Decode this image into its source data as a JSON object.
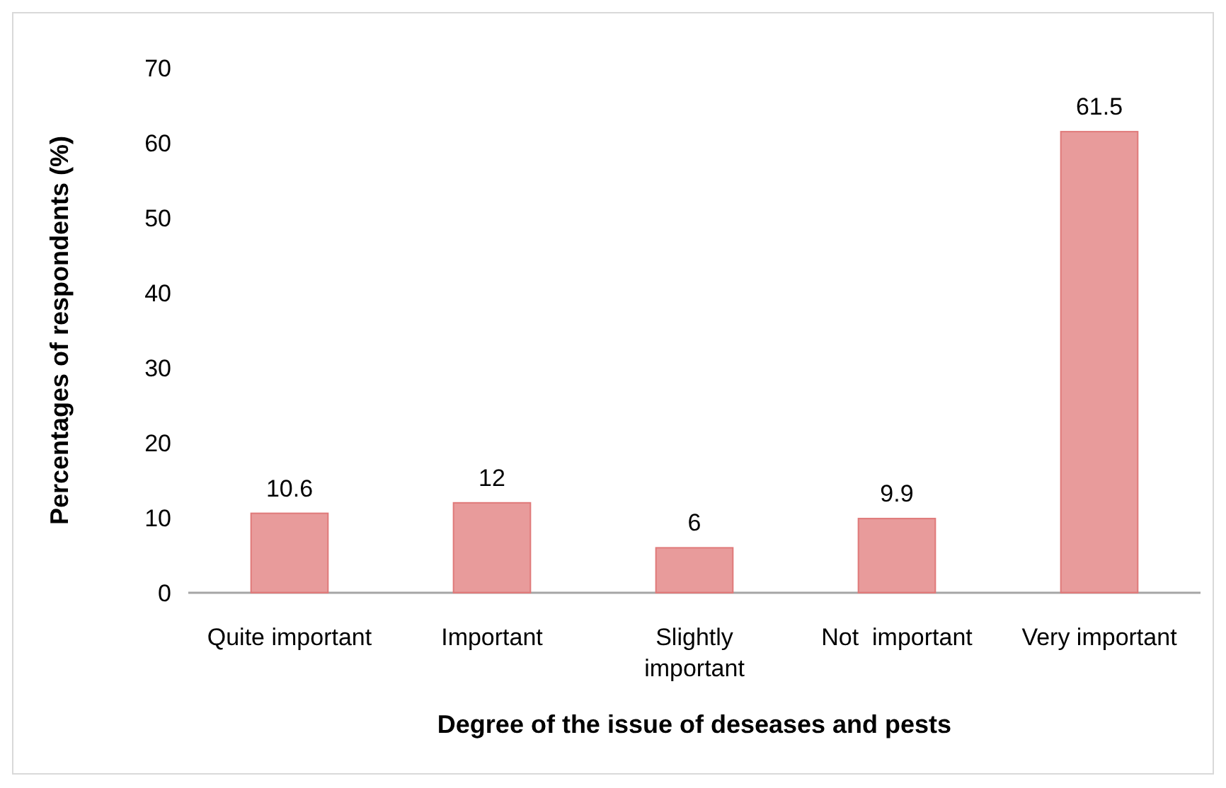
{
  "chart_data": {
    "type": "bar",
    "xlabel": "Degree of the issue of deseases and pests",
    "ylabel": "Percentages of respondents (%)",
    "categories": [
      "Quite important",
      "Important",
      "Slightly important",
      "Not  important",
      "Very important"
    ],
    "values": [
      10.6,
      12,
      6,
      9.9,
      61.5
    ],
    "color": "#e07a7a",
    "ylim": [
      0,
      70
    ],
    "yticks": [
      0,
      10,
      20,
      30,
      40,
      50,
      60,
      70
    ],
    "data_labels": true,
    "grid": false
  }
}
